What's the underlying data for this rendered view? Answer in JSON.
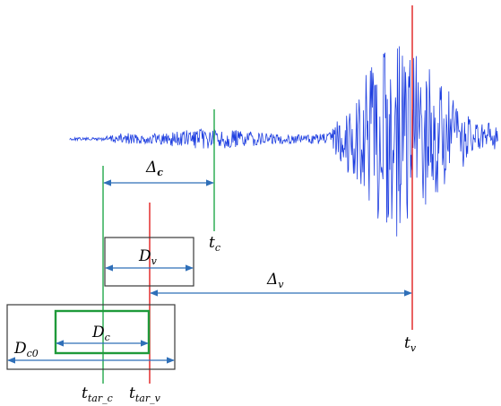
{
  "colors": {
    "waveform": "#1f3fe0",
    "green_line": "#22a84a",
    "red_line": "#e02020",
    "arrow": "#2f6fb8",
    "box_border": "#3a3a3a",
    "box_green": "#1f9a3a"
  },
  "labels": {
    "delta_c": {
      "main": "Δ",
      "sub": "c"
    },
    "t_c": {
      "main": "t",
      "sub": "c"
    },
    "d_v": {
      "main": "D",
      "sub": "v"
    },
    "delta_v": {
      "main": "Δ",
      "sub": "v"
    },
    "d_c": {
      "main": "D",
      "sub": "c"
    },
    "d_c0": {
      "main": "D",
      "sub": "c0"
    },
    "t_v": {
      "main": "t",
      "sub": "v"
    },
    "t_tar_c": {
      "main": "t",
      "sub": "tar_c"
    },
    "t_tar_v": {
      "main": "t",
      "sub": "tar_v"
    }
  }
}
